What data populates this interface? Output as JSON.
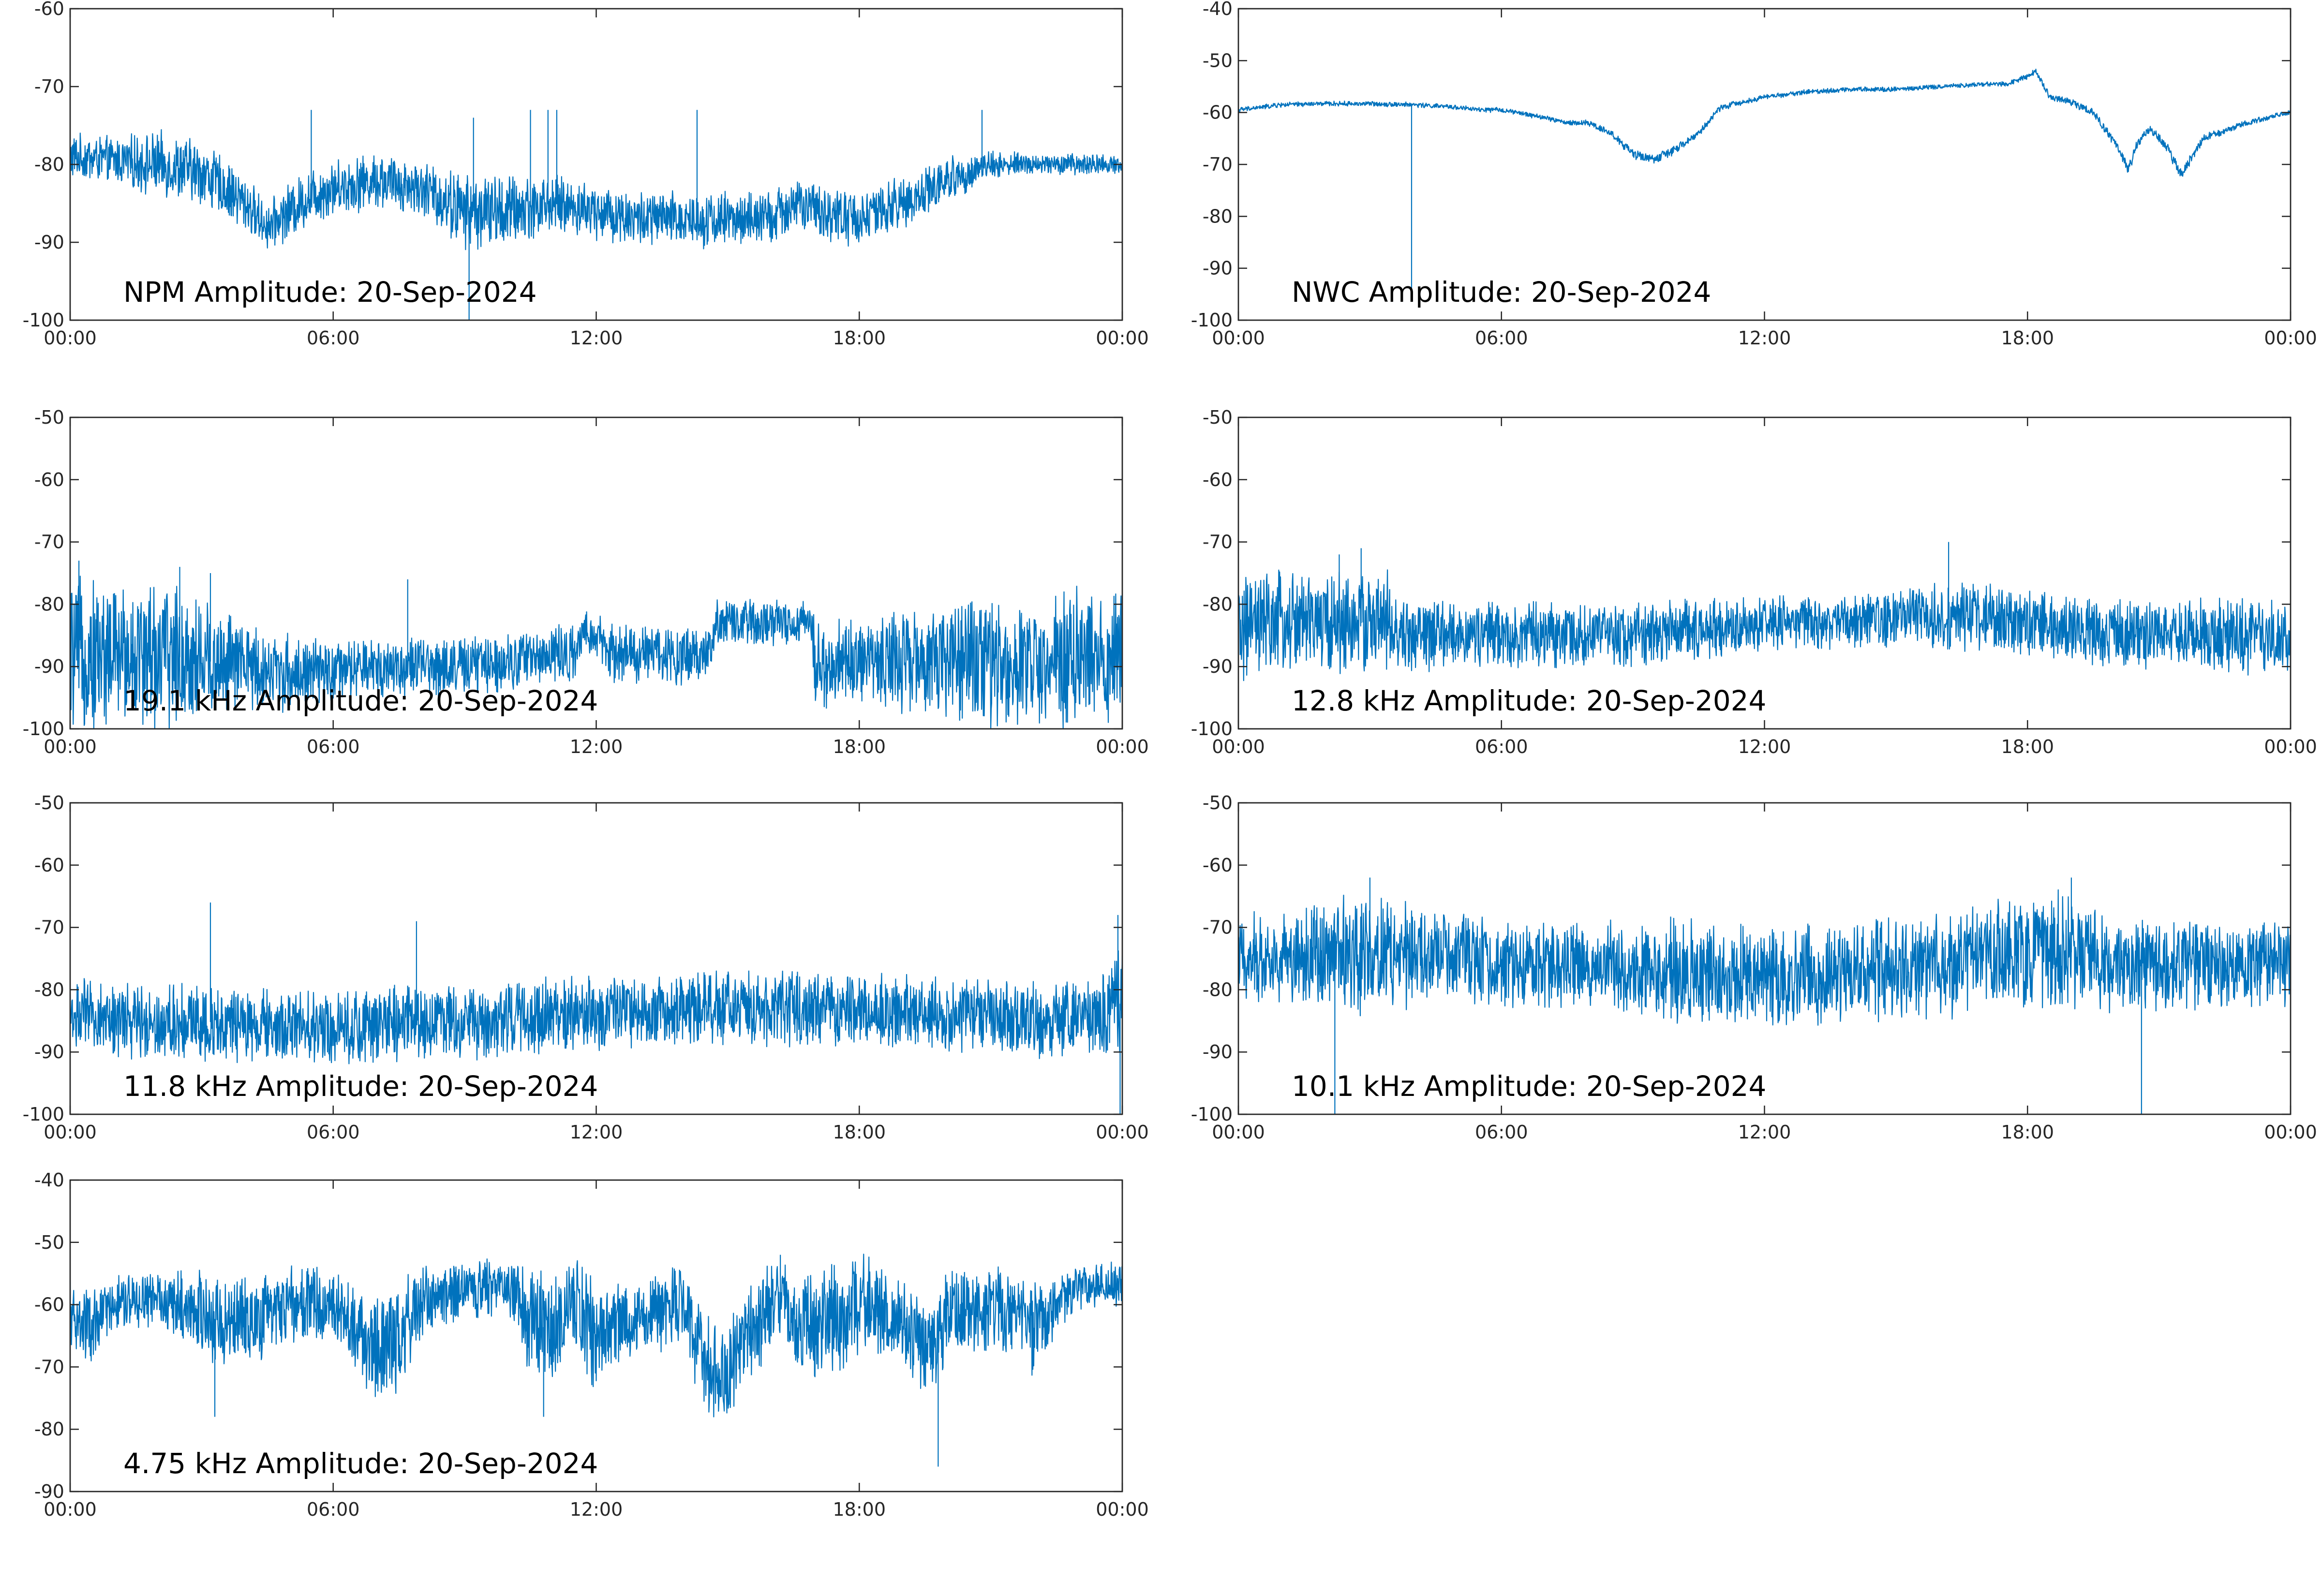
{
  "figure": {
    "background": "#ffffff",
    "line_color": "#0072bd"
  },
  "chart_data": [
    {
      "type": "line",
      "title": "NPM Amplitude: 20-Sep-2024",
      "xlabel": "",
      "ylabel": "",
      "x_ticks": [
        "00:00",
        "06:00",
        "12:00",
        "18:00",
        "00:00"
      ],
      "ylim": [
        -100,
        -60
      ],
      "y_ticks": [
        -100,
        -90,
        -80,
        -70,
        -60
      ],
      "grid": false,
      "series": [
        {
          "color": "#0072bd",
          "x_hours": [
            0,
            1,
            2,
            3,
            4,
            4.5,
            5,
            5.5,
            6,
            7,
            8,
            9,
            10,
            11,
            12,
            13,
            14,
            15,
            16,
            16.5,
            17,
            18,
            19,
            20,
            21,
            22,
            23,
            24
          ],
          "mean": [
            -79,
            -79.5,
            -80,
            -81,
            -85,
            -88,
            -86,
            -84,
            -83,
            -82,
            -83,
            -86,
            -86,
            -85,
            -86,
            -87,
            -87,
            -87,
            -87,
            -85,
            -86,
            -87,
            -85,
            -82,
            -80,
            -80,
            -80,
            -80
          ],
          "band": [
            2.5,
            2.5,
            3.5,
            3.5,
            3,
            2.5,
            3,
            3,
            3,
            3,
            3,
            4,
            4,
            3,
            3,
            3,
            3,
            3,
            3,
            3,
            3,
            3,
            3,
            2.5,
            1.5,
            1.2,
            1.2,
            1.2
          ],
          "spikes": [
            {
              "x": 5.5,
              "y": -73
            },
            {
              "x": 9.2,
              "y": -74
            },
            {
              "x": 9.1,
              "y": -100
            },
            {
              "x": 10.5,
              "y": -73
            },
            {
              "x": 10.9,
              "y": -73
            },
            {
              "x": 11.1,
              "y": -73
            },
            {
              "x": 14.3,
              "y": -73
            },
            {
              "x": 20.8,
              "y": -73
            }
          ]
        }
      ]
    },
    {
      "type": "line",
      "title": "NWC Amplitude: 20-Sep-2024",
      "xlabel": "",
      "ylabel": "",
      "x_ticks": [
        "00:00",
        "06:00",
        "12:00",
        "18:00",
        "00:00"
      ],
      "ylim": [
        -100,
        -40
      ],
      "y_ticks": [
        -100,
        -90,
        -80,
        -70,
        -60,
        -50,
        -40
      ],
      "grid": false,
      "series": [
        {
          "color": "#0072bd",
          "x_hours": [
            0,
            1,
            2,
            3,
            4,
            5,
            5.5,
            6,
            7,
            7.5,
            8,
            8.5,
            9,
            9.5,
            10,
            10.5,
            11,
            12,
            13,
            14,
            15,
            16,
            17,
            17.5,
            18,
            18.2,
            18.5,
            19,
            19.5,
            20,
            20.3,
            20.5,
            20.8,
            21.2,
            21.5,
            21.8,
            22,
            23,
            24
          ],
          "mean": [
            -59.5,
            -58.5,
            -58.3,
            -58.3,
            -58.5,
            -59,
            -59.5,
            -59.5,
            -61,
            -62,
            -62,
            -64,
            -68,
            -69,
            -67,
            -64,
            -59,
            -57,
            -56,
            -55.5,
            -55.5,
            -55,
            -54.5,
            -54.5,
            -53,
            -52,
            -57,
            -58,
            -60,
            -66,
            -71,
            -66,
            -63,
            -67,
            -72,
            -68,
            -65,
            -62,
            -60
          ],
          "band": [
            0.4,
            0.4,
            0.4,
            0.4,
            0.4,
            0.4,
            0.4,
            0.4,
            0.4,
            0.4,
            0.5,
            0.6,
            0.8,
            0.8,
            0.7,
            0.6,
            0.5,
            0.4,
            0.4,
            0.4,
            0.4,
            0.4,
            0.4,
            0.4,
            0.5,
            0.5,
            0.6,
            0.6,
            0.6,
            0.8,
            1,
            0.8,
            0.7,
            0.8,
            1,
            0.8,
            0.6,
            0.5,
            0.4
          ],
          "spikes": [
            {
              "x": 3.95,
              "y": -95
            }
          ]
        }
      ]
    },
    {
      "type": "line",
      "title": "19.1 kHz Amplitude: 20-Sep-2024",
      "xlabel": "",
      "ylabel": "",
      "x_ticks": [
        "00:00",
        "06:00",
        "12:00",
        "18:00",
        "00:00"
      ],
      "ylim": [
        -100,
        -50
      ],
      "y_ticks": [
        -100,
        -90,
        -80,
        -70,
        -60,
        -50
      ],
      "grid": false,
      "series": [
        {
          "color": "#0072bd",
          "x_hours": [
            0,
            1,
            2,
            3,
            4,
            5,
            6,
            7,
            8,
            9,
            10,
            11,
            11.6,
            11.7,
            12.1,
            12.2,
            13,
            14,
            14.6,
            14.7,
            16,
            16.9,
            17,
            18,
            19,
            20,
            21,
            22,
            23,
            24
          ],
          "mean": [
            -88,
            -88,
            -88,
            -89,
            -90,
            -91,
            -91,
            -90,
            -90,
            -90,
            -89,
            -88,
            -88,
            -85,
            -85,
            -88,
            -88,
            -88,
            -88,
            -83,
            -83,
            -83,
            -90,
            -89,
            -89,
            -89,
            -89,
            -89,
            -89,
            -89
          ],
          "band": [
            10,
            10,
            10,
            9,
            6,
            5,
            4,
            4,
            4,
            4,
            4,
            4,
            4,
            3,
            3,
            4,
            4,
            4,
            4,
            3,
            3,
            3,
            6,
            6,
            7,
            8,
            9,
            9,
            10,
            10
          ],
          "spikes": [
            {
              "x": 0.2,
              "y": -73
            },
            {
              "x": 2.5,
              "y": -74
            },
            {
              "x": 3.2,
              "y": -75
            },
            {
              "x": 7.7,
              "y": -76
            }
          ]
        }
      ]
    },
    {
      "type": "line",
      "title": "12.8 kHz Amplitude: 20-Sep-2024",
      "xlabel": "",
      "ylabel": "",
      "x_ticks": [
        "00:00",
        "06:00",
        "12:00",
        "18:00",
        "00:00"
      ],
      "ylim": [
        -100,
        -50
      ],
      "y_ticks": [
        -100,
        -90,
        -80,
        -70,
        -60,
        -50
      ],
      "grid": false,
      "series": [
        {
          "color": "#0072bd",
          "x_hours": [
            0,
            1,
            2,
            3,
            3.4,
            3.5,
            5,
            6,
            7,
            8,
            9,
            10,
            11,
            12,
            13,
            14,
            15,
            16,
            17,
            18,
            19,
            20,
            21,
            22,
            23,
            24
          ],
          "mean": [
            -84,
            -83,
            -83,
            -83,
            -83,
            -85,
            -85,
            -85,
            -85,
            -85,
            -85,
            -84,
            -84,
            -83,
            -83,
            -83,
            -82,
            -82,
            -82,
            -83,
            -84,
            -85,
            -85,
            -85,
            -85,
            -86
          ],
          "band": [
            7,
            7,
            7,
            7,
            7,
            5,
            4.5,
            4.5,
            4.5,
            4.5,
            4.5,
            4,
            4,
            3.5,
            3.5,
            3.5,
            4,
            4.5,
            4.5,
            4.5,
            4.5,
            4.5,
            4.5,
            5,
            5,
            5
          ],
          "spikes": [
            {
              "x": 2.3,
              "y": -72
            },
            {
              "x": 2.8,
              "y": -71
            },
            {
              "x": 16.2,
              "y": -70
            }
          ]
        }
      ]
    },
    {
      "type": "line",
      "title": "11.8 kHz Amplitude: 20-Sep-2024",
      "xlabel": "",
      "ylabel": "",
      "x_ticks": [
        "00:00",
        "06:00",
        "12:00",
        "18:00",
        "00:00"
      ],
      "ylim": [
        -100,
        -50
      ],
      "y_ticks": [
        -100,
        -90,
        -80,
        -70,
        -60,
        -50
      ],
      "grid": false,
      "series": [
        {
          "color": "#0072bd",
          "x_hours": [
            0,
            1,
            2,
            3,
            4,
            5,
            6,
            7,
            8,
            9,
            10,
            11,
            12,
            13,
            14,
            15,
            16,
            17,
            18,
            19,
            20,
            21,
            22,
            23,
            23.8,
            24
          ],
          "mean": [
            -84,
            -85,
            -85,
            -85,
            -86,
            -86,
            -86,
            -86,
            -85,
            -85,
            -85,
            -84,
            -84,
            -84,
            -83,
            -83,
            -83,
            -83,
            -83,
            -84,
            -84,
            -84,
            -85,
            -85,
            -83,
            -82
          ],
          "band": [
            5,
            5,
            5,
            5,
            5,
            5,
            5,
            5,
            5,
            5,
            5,
            5,
            5,
            5,
            5,
            5,
            5,
            5,
            5,
            5,
            5,
            5,
            5,
            5,
            7,
            8
          ],
          "spikes": [
            {
              "x": 3.2,
              "y": -66
            },
            {
              "x": 7.9,
              "y": -69
            },
            {
              "x": 23.9,
              "y": -68
            },
            {
              "x": 23.95,
              "y": -100
            }
          ]
        }
      ]
    },
    {
      "type": "line",
      "title": "10.1 kHz Amplitude: 20-Sep-2024",
      "xlabel": "",
      "ylabel": "",
      "x_ticks": [
        "00:00",
        "06:00",
        "12:00",
        "18:00",
        "00:00"
      ],
      "ylim": [
        -100,
        -50
      ],
      "y_ticks": [
        -100,
        -90,
        -80,
        -70,
        -60,
        -50
      ],
      "grid": false,
      "series": [
        {
          "color": "#0072bd",
          "x_hours": [
            0,
            1,
            2,
            2.5,
            3,
            4,
            5,
            6,
            7,
            8,
            9,
            10,
            11,
            12,
            13,
            14,
            15,
            16,
            17,
            18,
            19,
            20,
            21,
            22,
            23,
            24
          ],
          "mean": [
            -75,
            -75,
            -74,
            -74,
            -74,
            -75,
            -75,
            -76,
            -76,
            -76,
            -77,
            -77,
            -78,
            -78,
            -78,
            -77,
            -77,
            -76,
            -75,
            -74,
            -74,
            -76,
            -76,
            -76,
            -76,
            -76
          ],
          "band": [
            6,
            6,
            7,
            8,
            8,
            7,
            6,
            6,
            6,
            6,
            6,
            7,
            7,
            7,
            7,
            7,
            7,
            7,
            7,
            8,
            8,
            6,
            6,
            6,
            6,
            6
          ],
          "spikes": [
            {
              "x": 2.2,
              "y": -100
            },
            {
              "x": 3.0,
              "y": -62
            },
            {
              "x": 19.0,
              "y": -62
            },
            {
              "x": 20.6,
              "y": -100
            }
          ]
        }
      ]
    },
    {
      "type": "line",
      "title": "4.75 kHz Amplitude: 20-Sep-2024",
      "xlabel": "",
      "ylabel": "",
      "x_ticks": [
        "00:00",
        "06:00",
        "12:00",
        "18:00",
        "00:00"
      ],
      "ylim": [
        -90,
        -40
      ],
      "y_ticks": [
        -90,
        -80,
        -70,
        -60,
        -50,
        -40
      ],
      "grid": false,
      "series": [
        {
          "color": "#0072bd",
          "x_hours": [
            0,
            0.5,
            1,
            2,
            3,
            4,
            5,
            6,
            6.5,
            7,
            7.5,
            8,
            9,
            10,
            10.5,
            11,
            11.5,
            12,
            13,
            14,
            14.5,
            15,
            15.5,
            16,
            17,
            18,
            19,
            19.5,
            20,
            21,
            22,
            22.5,
            23,
            24
          ],
          "mean": [
            -62,
            -64,
            -60,
            -59,
            -62,
            -63,
            -60,
            -60,
            -63,
            -68,
            -65,
            -60,
            -58,
            -57,
            -63,
            -64,
            -60,
            -65,
            -62,
            -60,
            -70,
            -72,
            -64,
            -60,
            -64,
            -60,
            -62,
            -68,
            -62,
            -60,
            -64,
            -60,
            -57,
            -57
          ],
          "band": [
            5,
            5,
            4,
            4,
            6,
            6,
            5,
            5,
            6,
            7,
            7,
            5,
            4,
            4,
            7,
            8,
            7,
            7,
            5,
            6,
            7,
            7,
            7,
            6,
            7,
            7,
            6,
            6,
            6,
            6,
            6,
            4,
            3,
            3
          ],
          "spikes": [
            {
              "x": 3.3,
              "y": -78
            },
            {
              "x": 10.8,
              "y": -78
            },
            {
              "x": 19.8,
              "y": -86
            },
            {
              "x": 16.2,
              "y": -52
            }
          ]
        }
      ]
    }
  ]
}
